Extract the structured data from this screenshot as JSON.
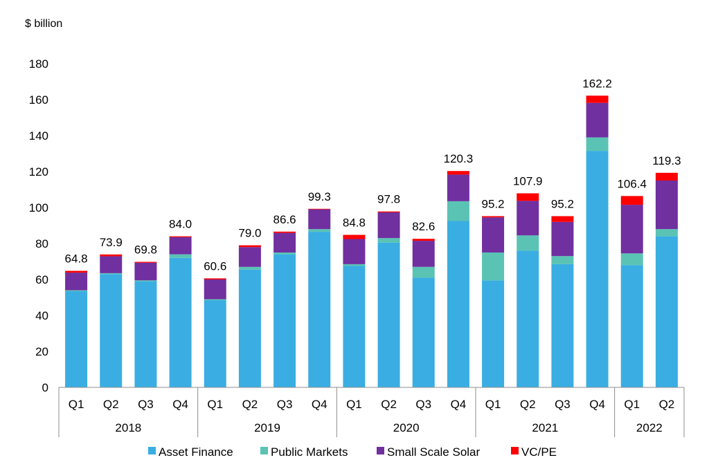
{
  "chart_data": {
    "type": "bar",
    "stacked": true,
    "title": "",
    "ylabel": "$ billion",
    "xlabel": "",
    "ylim": [
      0,
      180
    ],
    "yticks": [
      0,
      20,
      40,
      60,
      80,
      100,
      120,
      140,
      160,
      180
    ],
    "grid": false,
    "legend_position": "bottom",
    "categories": [
      "Q1",
      "Q2",
      "Q3",
      "Q4",
      "Q1",
      "Q2",
      "Q3",
      "Q4",
      "Q1",
      "Q2",
      "Q3",
      "Q4",
      "Q1",
      "Q2",
      "Q3",
      "Q4",
      "Q1",
      "Q2"
    ],
    "groups": [
      {
        "label": "2018",
        "count": 4
      },
      {
        "label": "2019",
        "count": 4
      },
      {
        "label": "2020",
        "count": 4
      },
      {
        "label": "2021",
        "count": 4
      },
      {
        "label": "2022",
        "count": 2
      }
    ],
    "series": [
      {
        "name": "Asset Finance",
        "color": "#3aaee2",
        "values": [
          53.5,
          63.0,
          59.0,
          72.0,
          48.5,
          65.5,
          74.0,
          86.5,
          67.5,
          80.5,
          61.0,
          92.5,
          59.5,
          76.0,
          68.5,
          131.5,
          68.0,
          84.0
        ]
      },
      {
        "name": "Public Markets",
        "color": "#5ac3b4",
        "values": [
          0.5,
          0.5,
          0.5,
          2.0,
          0.5,
          1.5,
          1.0,
          1.5,
          1.0,
          2.5,
          6.0,
          11.0,
          15.5,
          8.5,
          4.5,
          7.5,
          6.5,
          4.0
        ]
      },
      {
        "name": "Small Scale Solar",
        "color": "#7030a0",
        "values": [
          9.8,
          9.4,
          9.8,
          9.5,
          11.0,
          11.0,
          10.9,
          11.0,
          14.0,
          14.3,
          14.5,
          14.8,
          19.5,
          19.2,
          19.0,
          19.2,
          27.0,
          27.0
        ]
      },
      {
        "name": "VC/PE",
        "color": "#ff0000",
        "values": [
          1.0,
          1.0,
          0.5,
          0.5,
          0.6,
          1.0,
          0.7,
          0.3,
          2.3,
          0.5,
          1.1,
          2.0,
          0.7,
          4.2,
          3.2,
          4.0,
          4.9,
          4.3
        ]
      }
    ],
    "totals": [
      "64.8",
      "73.9",
      "69.8",
      "84.0",
      "60.6",
      "79.0",
      "86.6",
      "99.3",
      "84.8",
      "97.8",
      "82.6",
      "120.3",
      "95.2",
      "107.9",
      "95.2",
      "162.2",
      "106.4",
      "119.3"
    ]
  }
}
